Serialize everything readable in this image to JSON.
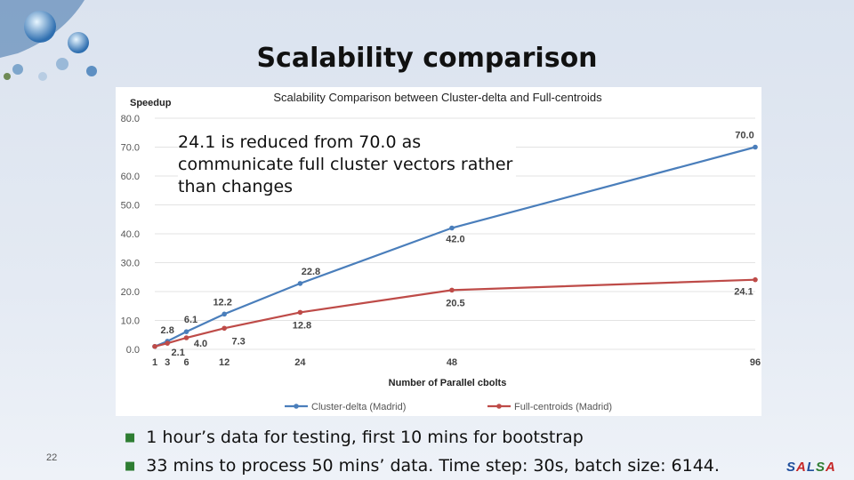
{
  "slide": {
    "title": "Scalability comparison",
    "page_number": "22",
    "brand": [
      "S",
      "A",
      "L",
      "S",
      "A"
    ],
    "callout": "24.1 is reduced from 70.0 as communicate full cluster vectors rather than changes",
    "bullets": [
      "1 hour’s data for testing, first 10 mins for bootstrap",
      "33 mins to process 50 mins’ data. Time step: 30s, batch size: 6144."
    ],
    "bullet_icon": "square-bullet-icon",
    "logo_icon": "globe-network-logo"
  },
  "chart_data": {
    "type": "line",
    "title": "Scalability Comparison between Cluster-delta and Full-centroids",
    "ylabel": "Speedup",
    "xlabel": "Number of Parallel cbolts",
    "x": [
      1,
      3,
      6,
      12,
      24,
      48,
      96
    ],
    "ylim": [
      0,
      80
    ],
    "yticks": [
      "0.0",
      "10.0",
      "20.0",
      "30.0",
      "40.0",
      "50.0",
      "60.0",
      "70.0",
      "80.0"
    ],
    "grid": true,
    "legend_position": "bottom",
    "series": [
      {
        "name": "Cluster-delta (Madrid)",
        "color": "#4a7ebb",
        "values": [
          1.0,
          2.8,
          6.1,
          12.2,
          22.8,
          42.0,
          70.0
        ],
        "labels": [
          "",
          "2.8",
          "6.1",
          "12.2",
          "22.8",
          "42.0",
          "70.0"
        ]
      },
      {
        "name": "Full-centroids (Madrid)",
        "color": "#be4b48",
        "values": [
          1.0,
          2.1,
          4.0,
          7.3,
          12.8,
          20.5,
          24.1
        ],
        "labels": [
          "",
          "2.1",
          "4.0",
          "7.3",
          "12.8",
          "20.5",
          "24.1"
        ]
      }
    ]
  }
}
